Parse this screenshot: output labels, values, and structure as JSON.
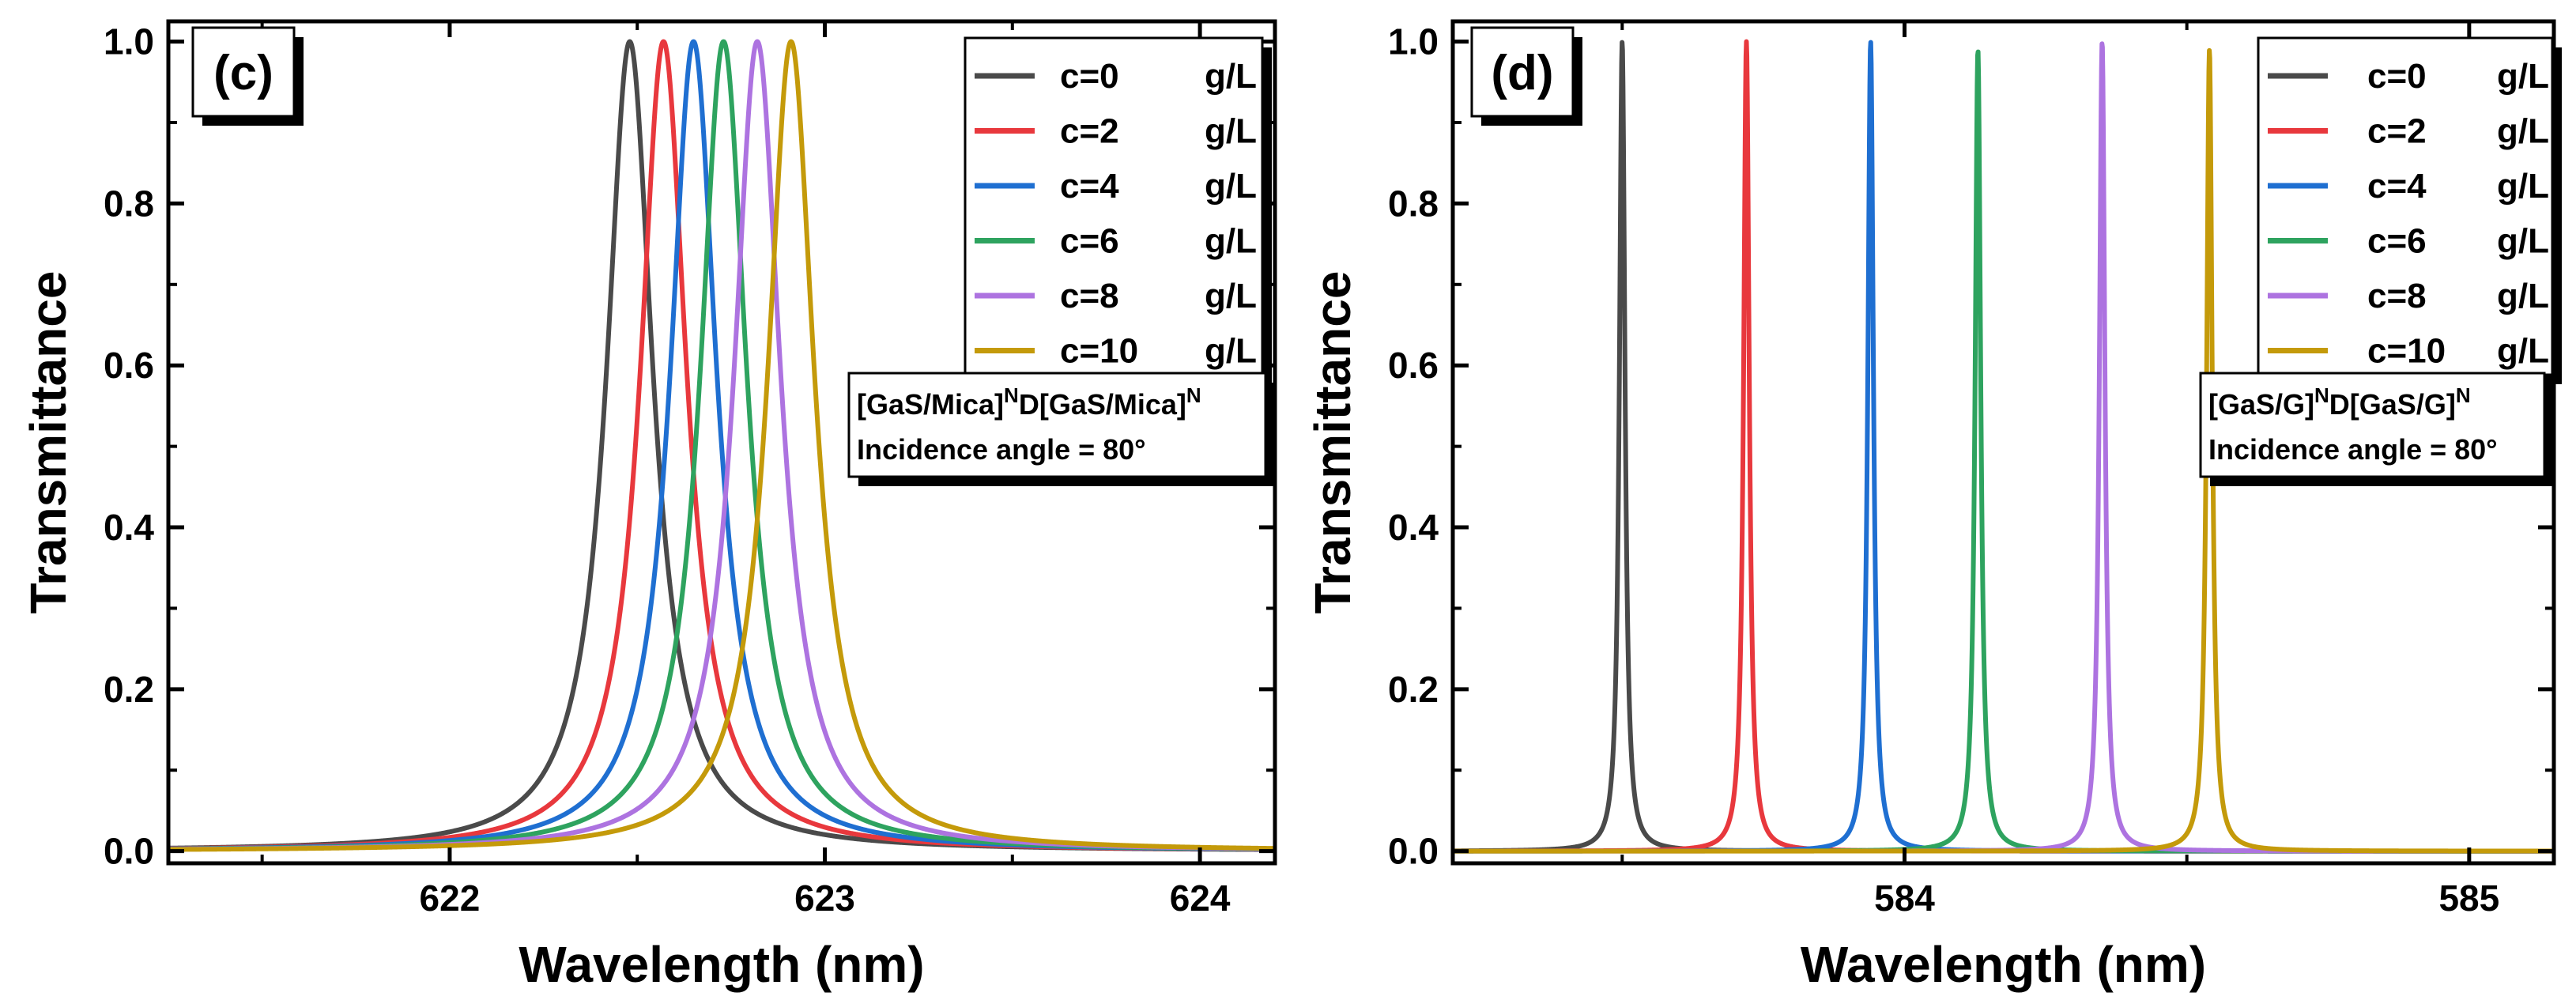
{
  "figure": {
    "description_panels": [
      "c",
      "d"
    ]
  },
  "chart_data": [
    {
      "type": "line",
      "panel_label": "(c)",
      "xlabel": "Wavelength (nm)",
      "ylabel": "Transmittance",
      "xlim": [
        621.25,
        624.2
      ],
      "ylim": [
        -0.015,
        1.025
      ],
      "xticks": [
        622,
        623,
        624
      ],
      "xtick_labels": [
        "622",
        "623",
        "624"
      ],
      "yticks": [
        0.0,
        0.2,
        0.4,
        0.6,
        0.8,
        1.0
      ],
      "ytick_labels": [
        "0.0",
        "0.2",
        "0.4",
        "0.6",
        "0.8",
        "1.0"
      ],
      "legend_position": "top-right",
      "annotation_lines": [
        {
          "parts": [
            {
              "t": "[GaS/Mica]"
            },
            {
              "t": "N",
              "sup": true
            },
            {
              "t": "D[GaS/Mica]"
            },
            {
              "t": "N",
              "sup": true
            }
          ]
        },
        {
          "parts": [
            {
              "t": "Incidence angle = 80°"
            }
          ]
        }
      ],
      "series": [
        {
          "name": "c=0",
          "unit": "g/L",
          "color": "#4a4a4a",
          "center": 622.48,
          "peak": 1.0,
          "hwhm": 0.075
        },
        {
          "name": "c=2",
          "unit": "g/L",
          "color": "#e8383d",
          "center": 622.57,
          "peak": 1.0,
          "hwhm": 0.075
        },
        {
          "name": "c=4",
          "unit": "g/L",
          "color": "#1f6fd1",
          "center": 622.65,
          "peak": 1.0,
          "hwhm": 0.075
        },
        {
          "name": "c=6",
          "unit": "g/L",
          "color": "#2ea35f",
          "center": 622.73,
          "peak": 1.0,
          "hwhm": 0.075
        },
        {
          "name": "c=8",
          "unit": "g/L",
          "color": "#ad73e0",
          "center": 622.82,
          "peak": 1.0,
          "hwhm": 0.075
        },
        {
          "name": "c=10",
          "unit": "g/L",
          "color": "#c49a0a",
          "center": 622.91,
          "peak": 1.0,
          "hwhm": 0.075
        }
      ]
    },
    {
      "type": "line",
      "panel_label": "(d)",
      "xlabel": "Wavelength (nm)",
      "ylabel": "Transmittance",
      "xlim": [
        583.2,
        585.15
      ],
      "ylim": [
        -0.015,
        1.025
      ],
      "xticks": [
        584,
        585
      ],
      "xtick_labels": [
        "584",
        "585"
      ],
      "yticks": [
        0.0,
        0.2,
        0.4,
        0.6,
        0.8,
        1.0
      ],
      "ytick_labels": [
        "0.0",
        "0.2",
        "0.4",
        "0.6",
        "0.8",
        "1.0"
      ],
      "legend_position": "top-right",
      "annotation_lines": [
        {
          "parts": [
            {
              "t": "[GaS/G]"
            },
            {
              "t": "N",
              "sup": true
            },
            {
              "t": "D[GaS/G]"
            },
            {
              "t": "N",
              "sup": true
            }
          ]
        },
        {
          "parts": [
            {
              "t": "Incidence angle = 80°"
            }
          ]
        }
      ],
      "series": [
        {
          "name": "c=0",
          "unit": "g/L",
          "color": "#4a4a4a",
          "center": 583.5,
          "peak": 1.0,
          "hwhm": 0.006
        },
        {
          "name": "c=2",
          "unit": "g/L",
          "color": "#e8383d",
          "center": 583.72,
          "peak": 1.0,
          "hwhm": 0.006
        },
        {
          "name": "c=4",
          "unit": "g/L",
          "color": "#1f6fd1",
          "center": 583.94,
          "peak": 1.0,
          "hwhm": 0.006
        },
        {
          "name": "c=6",
          "unit": "g/L",
          "color": "#2ea35f",
          "center": 584.13,
          "peak": 0.99,
          "hwhm": 0.006
        },
        {
          "name": "c=8",
          "unit": "g/L",
          "color": "#ad73e0",
          "center": 584.35,
          "peak": 1.0,
          "hwhm": 0.006
        },
        {
          "name": "c=10",
          "unit": "g/L",
          "color": "#c49a0a",
          "center": 584.54,
          "peak": 0.99,
          "hwhm": 0.006
        }
      ]
    }
  ]
}
